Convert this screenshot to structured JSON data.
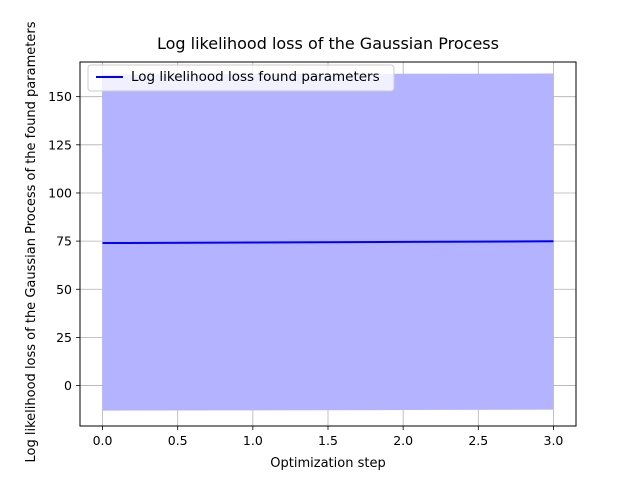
{
  "chart_data": {
    "type": "line",
    "title": "Log likelihood loss of the Gaussian Process",
    "xlabel": "Optimization step",
    "ylabel": "Log likelihood loss of the Gaussian Process of the found parameters",
    "xlim": [
      -0.15,
      3.15
    ],
    "ylim": [
      -21,
      168
    ],
    "xticks": [
      0.0,
      0.5,
      1.0,
      1.5,
      2.0,
      2.5,
      3.0
    ],
    "xtick_labels": [
      "0.0",
      "0.5",
      "1.0",
      "1.5",
      "2.0",
      "2.5",
      "3.0"
    ],
    "yticks": [
      0,
      25,
      50,
      75,
      100,
      125,
      150
    ],
    "ytick_labels": [
      "0",
      "25",
      "50",
      "75",
      "100",
      "125",
      "150"
    ],
    "grid": true,
    "legend_position": "upper-left",
    "series": [
      {
        "name": "Log likelihood loss found parameters",
        "color": "#0000ff",
        "x": [
          0,
          1,
          2,
          3
        ],
        "y": [
          74.0,
          74.3,
          74.6,
          74.9
        ],
        "band_lower": [
          -13.0,
          -12.9,
          -12.7,
          -12.5
        ],
        "band_upper": [
          161.5,
          161.7,
          161.9,
          162.0
        ],
        "band_color": "#b3b3ff"
      }
    ]
  }
}
